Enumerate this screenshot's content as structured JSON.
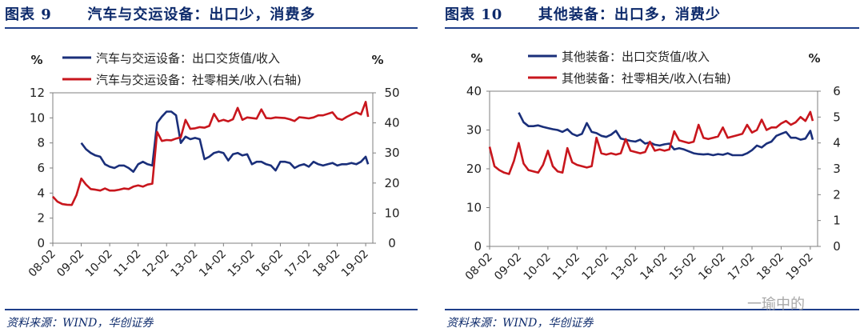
{
  "figures": [
    {
      "title_prefix": "图表 9",
      "title_text": "汽车与交运设备：出口少，消费多",
      "source": "资料来源：WIND，华创证券",
      "left_unit": "%",
      "right_unit": "%"
    },
    {
      "title_prefix": "图表 10",
      "title_text": "其他装备：出口多，消费少",
      "source": "资料来源：WIND，华创证券",
      "left_unit": "%",
      "right_unit": "%"
    }
  ],
  "watermark": "一瑜中的",
  "colors": {
    "primary": "#1a2f7a",
    "secondary": "#c8161d",
    "rule": "#1f3f8a",
    "title": "#0d2a6b"
  },
  "chart_data": [
    {
      "type": "line",
      "title": "汽车与交运设备：出口少，消费多",
      "categories": [
        "08-02",
        "09-02",
        "10-02",
        "11-02",
        "12-02",
        "13-02",
        "14-02",
        "15-02",
        "16-02",
        "17-02",
        "18-02",
        "19-02"
      ],
      "x_range": [
        0,
        135
      ],
      "ylim_left": [
        0,
        12
      ],
      "yticks_left": [
        0,
        2,
        4,
        6,
        8,
        10,
        12
      ],
      "ylim_right": [
        0,
        50
      ],
      "yticks_right": [
        0,
        10,
        20,
        30,
        40,
        50
      ],
      "legend_position": "top-center",
      "series": [
        {
          "name": "汽车与交运设备：出口交货值/收入",
          "axis": "left",
          "x": [
            12,
            14,
            16,
            18,
            20,
            22,
            24,
            26,
            28,
            30,
            32,
            34,
            36,
            38,
            40,
            42,
            44,
            46,
            48,
            50,
            52,
            54,
            56,
            58,
            60,
            62,
            64,
            66,
            68,
            70,
            72,
            74,
            76,
            78,
            80,
            82,
            84,
            86,
            88,
            90,
            92,
            94,
            96,
            98,
            100,
            102,
            104,
            106,
            108,
            110,
            112,
            114,
            116,
            118,
            120,
            122,
            124,
            126,
            128,
            130,
            132,
            133
          ],
          "values": [
            8.0,
            7.5,
            7.2,
            7.0,
            6.9,
            6.3,
            6.1,
            6.0,
            6.2,
            6.2,
            6.0,
            5.7,
            6.3,
            6.5,
            6.3,
            6.2,
            9.6,
            10.1,
            10.5,
            10.5,
            10.2,
            8.0,
            8.5,
            8.3,
            8.4,
            8.3,
            6.7,
            6.9,
            7.2,
            7.3,
            7.2,
            6.6,
            7.1,
            7.2,
            7.0,
            7.1,
            6.3,
            6.5,
            6.5,
            6.3,
            6.2,
            5.8,
            6.5,
            6.5,
            6.4,
            6.0,
            6.2,
            6.3,
            6.1,
            6.5,
            6.3,
            6.2,
            6.3,
            6.4,
            6.2,
            6.3,
            6.3,
            6.4,
            6.3,
            6.5,
            6.9,
            6.3
          ]
        },
        {
          "name": "汽车与交运设备：社零相关/收入(右轴)",
          "axis": "right",
          "x": [
            0,
            2,
            4,
            6,
            8,
            10,
            12,
            14,
            16,
            18,
            20,
            22,
            24,
            26,
            28,
            30,
            32,
            34,
            36,
            38,
            40,
            42,
            44,
            46,
            48,
            50,
            52,
            54,
            56,
            58,
            60,
            62,
            64,
            66,
            68,
            70,
            72,
            74,
            76,
            78,
            80,
            82,
            84,
            86,
            88,
            90,
            92,
            94,
            96,
            98,
            100,
            102,
            104,
            106,
            108,
            110,
            112,
            114,
            116,
            118,
            120,
            122,
            124,
            126,
            128,
            130,
            132,
            133
          ],
          "values": [
            15.5,
            13.8,
            13.0,
            12.8,
            12.7,
            16,
            21.5,
            19.5,
            18,
            17.8,
            17.5,
            18.2,
            17.5,
            17.5,
            17.8,
            18.2,
            18,
            18.8,
            19.2,
            18.8,
            19.5,
            19.8,
            37,
            34,
            34.3,
            34.2,
            34.8,
            35.2,
            41,
            38,
            38.2,
            38.6,
            38.4,
            39,
            43,
            40.5,
            41,
            40.5,
            41.2,
            45,
            41,
            41.8,
            41.6,
            41.4,
            44.5,
            41.6,
            41.5,
            41.8,
            41.7,
            41.6,
            41.2,
            40.6,
            41.9,
            41.7,
            41.5,
            41.8,
            42.5,
            42.5,
            43,
            43.5,
            41.5,
            41,
            42,
            42.8,
            43.5,
            42.8,
            47,
            42
          ]
        }
      ]
    },
    {
      "type": "line",
      "title": "其他装备：出口多，消费少",
      "categories": [
        "08-02",
        "09-02",
        "10-02",
        "11-02",
        "12-02",
        "13-02",
        "14-02",
        "15-02",
        "16-02",
        "17-02",
        "18-02",
        "19-02"
      ],
      "x_range": [
        0,
        135
      ],
      "ylim_left": [
        0,
        40
      ],
      "yticks_left": [
        0,
        10,
        20,
        30,
        40
      ],
      "ylim_right": [
        0,
        6
      ],
      "yticks_right": [
        0,
        1,
        2,
        3,
        4,
        5,
        6
      ],
      "legend_position": "top-center",
      "series": [
        {
          "name": "其他装备：出口交货值/收入",
          "axis": "left",
          "x": [
            12,
            14,
            16,
            18,
            20,
            22,
            24,
            26,
            28,
            30,
            32,
            34,
            36,
            38,
            40,
            42,
            44,
            46,
            48,
            50,
            52,
            54,
            56,
            58,
            60,
            62,
            64,
            66,
            68,
            70,
            72,
            74,
            76,
            78,
            80,
            82,
            84,
            86,
            88,
            90,
            92,
            94,
            96,
            98,
            100,
            102,
            104,
            106,
            108,
            110,
            112,
            114,
            116,
            118,
            120,
            122,
            124,
            126,
            128,
            130,
            132,
            133
          ],
          "values": [
            34.5,
            32,
            31,
            31,
            31.2,
            30.8,
            30.5,
            30.2,
            30,
            29.5,
            30.2,
            29,
            28.5,
            29,
            31.8,
            29.5,
            29.2,
            28.5,
            28.2,
            28.8,
            29.8,
            27.8,
            27.5,
            27.2,
            27,
            27.5,
            26.5,
            26.8,
            26.2,
            26,
            26.3,
            26.5,
            25,
            25.3,
            25,
            24.5,
            24,
            23.8,
            23.7,
            23.8,
            23.5,
            23.8,
            23.6,
            24,
            23.5,
            23.5,
            23.5,
            24,
            24.8,
            26,
            25.5,
            26.5,
            27,
            28.5,
            29,
            29.5,
            28,
            28,
            27.5,
            27.8,
            29.8,
            27.5
          ]
        },
        {
          "name": "其他装备：社零相关/收入(右轴)",
          "axis": "right",
          "x": [
            0,
            2,
            4,
            6,
            8,
            10,
            12,
            14,
            16,
            18,
            20,
            22,
            24,
            26,
            28,
            30,
            32,
            34,
            36,
            38,
            40,
            42,
            44,
            46,
            48,
            50,
            52,
            54,
            56,
            58,
            60,
            62,
            64,
            66,
            68,
            70,
            72,
            74,
            76,
            78,
            80,
            82,
            84,
            86,
            88,
            90,
            92,
            94,
            96,
            98,
            100,
            102,
            104,
            106,
            108,
            110,
            112,
            114,
            116,
            118,
            120,
            122,
            124,
            126,
            128,
            130,
            132,
            133
          ],
          "values": [
            3.85,
            3.1,
            2.95,
            2.85,
            2.8,
            3.3,
            4.0,
            3.2,
            2.95,
            2.9,
            2.85,
            3.15,
            3.7,
            3.1,
            2.9,
            2.85,
            3.8,
            3.25,
            3.15,
            3.1,
            3.05,
            3.1,
            4.2,
            3.6,
            3.55,
            3.6,
            3.55,
            3.6,
            4.15,
            3.7,
            3.65,
            3.6,
            3.65,
            4.05,
            3.7,
            3.75,
            3.7,
            3.75,
            4.45,
            4.1,
            4.05,
            4.0,
            4.05,
            4.7,
            4.2,
            4.15,
            4.2,
            4.25,
            4.6,
            4.2,
            4.25,
            4.3,
            4.35,
            4.7,
            4.4,
            4.5,
            4.9,
            4.5,
            4.6,
            4.6,
            4.75,
            4.85,
            4.7,
            4.8,
            5.0,
            4.85,
            5.2,
            4.85
          ]
        }
      ]
    }
  ]
}
